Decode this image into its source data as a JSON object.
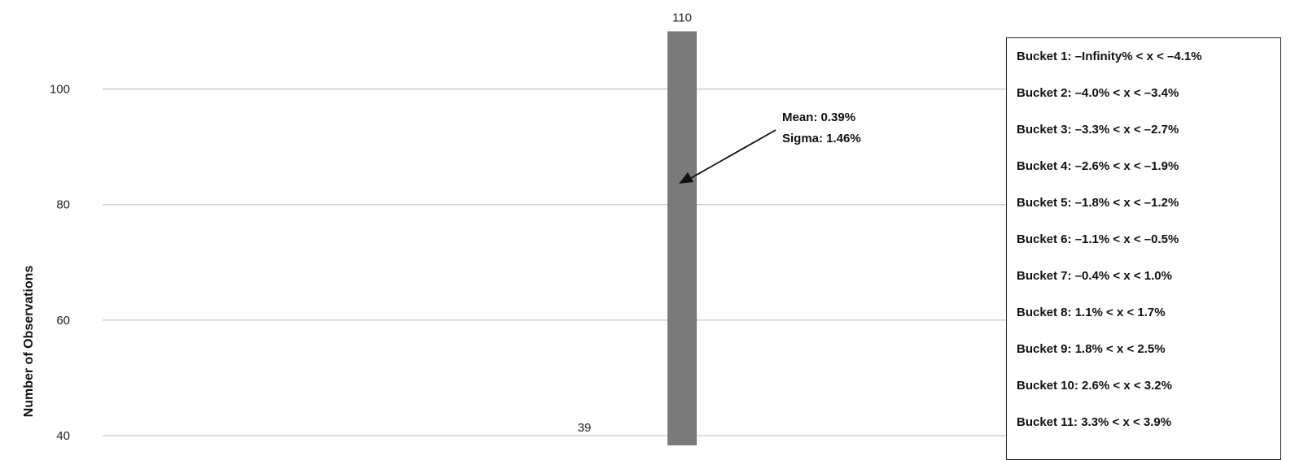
{
  "chart_data": {
    "type": "bar",
    "categories": [
      "Bucket 6",
      "Bucket 7"
    ],
    "values": [
      39,
      110
    ],
    "data_labels": [
      "39",
      "110"
    ],
    "ylabel": "Number of Observations",
    "ylim": [
      40,
      110
    ],
    "yticks": [
      40,
      60,
      80,
      100
    ],
    "ytick_labels": [
      "40",
      "60",
      "80",
      "100"
    ],
    "grid": true,
    "bar_color": "#7a7a7a",
    "grid_color": "#c8c8c8",
    "legend_placement": "right",
    "legend": [
      "Bucket 1: –Infinity% < x < –4.1%",
      "Bucket 2: –4.0% < x < –3.4%",
      "Bucket 3: –3.3% < x < –2.7%",
      "Bucket 4: –2.6% < x < –1.9%",
      "Bucket 5: –1.8% < x < –1.2%",
      "Bucket 6: –1.1% < x < –0.5%",
      "Bucket 7: –0.4% < x < 1.0%",
      "Bucket 8: 1.1% < x < 1.7%",
      "Bucket 9: 1.8% < x < 2.5%",
      "Bucket 10: 2.6% < x < 3.2%",
      "Bucket 11: 3.3% < x < 3.9%"
    ],
    "annotation": {
      "lines": [
        "Mean: 0.39%",
        "Sigma: 1.46%"
      ],
      "points_to": "Bucket 7"
    }
  }
}
